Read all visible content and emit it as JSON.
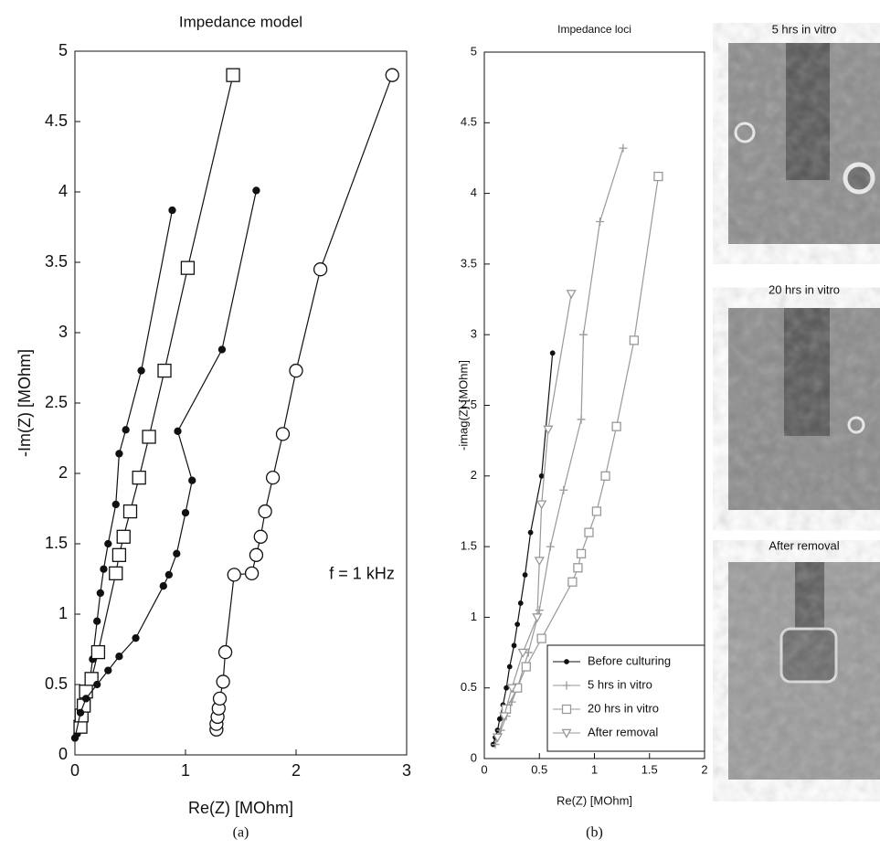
{
  "chart_data": [
    {
      "type": "line",
      "title": "Impedance model",
      "xlabel": "Re(Z) [MOhm]",
      "ylabel": "-Im(Z) [MOhm]",
      "caption": "(a)",
      "annotation": {
        "text": "f = 1 kHz",
        "x": 2.3,
        "y": 1.28
      },
      "xlim": [
        0,
        3
      ],
      "xticks": [
        0,
        1,
        2,
        3
      ],
      "ylim": [
        0,
        5
      ],
      "yticks": [
        0,
        0.5,
        1,
        1.5,
        2,
        2.5,
        3,
        3.5,
        4,
        4.5,
        5
      ],
      "series": [
        {
          "color": "#111111",
          "marker": "dot",
          "x": [
            0.02,
            0.04,
            0.06,
            0.08,
            0.1,
            0.13,
            0.16,
            0.2,
            0.23,
            0.26,
            0.3,
            0.37,
            0.4,
            0.46,
            0.6,
            0.88
          ],
          "values": [
            0.15,
            0.2,
            0.25,
            0.3,
            0.38,
            0.5,
            0.68,
            0.95,
            1.15,
            1.32,
            1.5,
            1.78,
            2.14,
            2.31,
            2.73,
            3.87
          ]
        },
        {
          "color": "#111111",
          "marker": "square",
          "x": [
            0.05,
            0.06,
            0.08,
            0.1,
            0.15,
            0.21,
            0.37,
            0.4,
            0.44,
            0.5,
            0.58,
            0.67,
            0.81,
            1.02,
            1.43
          ],
          "values": [
            0.2,
            0.28,
            0.35,
            0.45,
            0.54,
            0.73,
            1.29,
            1.42,
            1.55,
            1.73,
            1.97,
            2.26,
            2.73,
            3.46,
            4.83
          ]
        },
        {
          "color": "#111111",
          "marker": "dot",
          "x": [
            0.0,
            0.05,
            0.1,
            0.2,
            0.3,
            0.4,
            0.55,
            0.8,
            0.85,
            0.92,
            1.0,
            1.06,
            0.93,
            1.33,
            1.64
          ],
          "values": [
            0.12,
            0.3,
            0.4,
            0.5,
            0.6,
            0.7,
            0.83,
            1.2,
            1.28,
            1.43,
            1.72,
            1.95,
            2.3,
            2.88,
            4.01
          ]
        },
        {
          "color": "#111111",
          "marker": "circle",
          "x": [
            1.28,
            1.28,
            1.29,
            1.3,
            1.31,
            1.34,
            1.36,
            1.44,
            1.6,
            1.64,
            1.68,
            1.72,
            1.79,
            1.88,
            2.0,
            2.22,
            2.87
          ],
          "values": [
            0.18,
            0.22,
            0.27,
            0.33,
            0.4,
            0.52,
            0.73,
            1.28,
            1.29,
            1.42,
            1.55,
            1.73,
            1.97,
            2.28,
            2.73,
            3.45,
            4.83
          ]
        }
      ]
    },
    {
      "type": "line",
      "title": "Impedance loci",
      "xlabel": "Re(Z) [MOhm]",
      "ylabel": "-imag(Z) [MOhm]",
      "caption": "(b)",
      "legend": "lower right",
      "xlim": [
        0,
        2
      ],
      "xticks": [
        0,
        0.5,
        1,
        1.5,
        2
      ],
      "ylim": [
        0,
        5
      ],
      "yticks": [
        0,
        0.5,
        1,
        1.5,
        2,
        2.5,
        3,
        3.5,
        4,
        4.5,
        5
      ],
      "series": [
        {
          "name": "Before culturing",
          "color": "#111111",
          "marker": "dot",
          "x": [
            0.08,
            0.1,
            0.12,
            0.14,
            0.17,
            0.2,
            0.23,
            0.27,
            0.3,
            0.33,
            0.37,
            0.42,
            0.52,
            0.62
          ],
          "values": [
            0.1,
            0.15,
            0.2,
            0.28,
            0.38,
            0.5,
            0.65,
            0.8,
            0.95,
            1.1,
            1.3,
            1.6,
            2.0,
            2.87
          ]
        },
        {
          "name": "5 hrs in vitro",
          "color": "#999999",
          "marker": "plus",
          "x": [
            0.1,
            0.15,
            0.2,
            0.25,
            0.3,
            0.4,
            0.5,
            0.6,
            0.72,
            0.88,
            0.9,
            1.05,
            1.26
          ],
          "values": [
            0.1,
            0.2,
            0.3,
            0.4,
            0.5,
            0.75,
            1.05,
            1.5,
            1.9,
            2.4,
            3.0,
            3.8,
            4.32
          ]
        },
        {
          "name": "20 hrs in vitro",
          "color": "#999999",
          "marker": "square",
          "x": [
            0.2,
            0.3,
            0.38,
            0.52,
            0.8,
            0.85,
            0.88,
            0.95,
            1.02,
            1.1,
            1.2,
            1.36,
            1.58
          ],
          "values": [
            0.35,
            0.5,
            0.65,
            0.85,
            1.25,
            1.35,
            1.45,
            1.6,
            1.75,
            2.0,
            2.35,
            2.96,
            4.12
          ]
        },
        {
          "name": "After removal",
          "color": "#999999",
          "marker": "tri",
          "x": [
            0.12,
            0.18,
            0.25,
            0.35,
            0.48,
            0.5,
            0.52,
            0.58,
            0.79
          ],
          "values": [
            0.15,
            0.3,
            0.5,
            0.75,
            1.0,
            1.4,
            1.8,
            2.33,
            3.29
          ]
        }
      ]
    }
  ],
  "images": [
    {
      "title": "5 hrs in vitro"
    },
    {
      "title": "20 hrs in vitro"
    },
    {
      "title": "After removal"
    }
  ]
}
